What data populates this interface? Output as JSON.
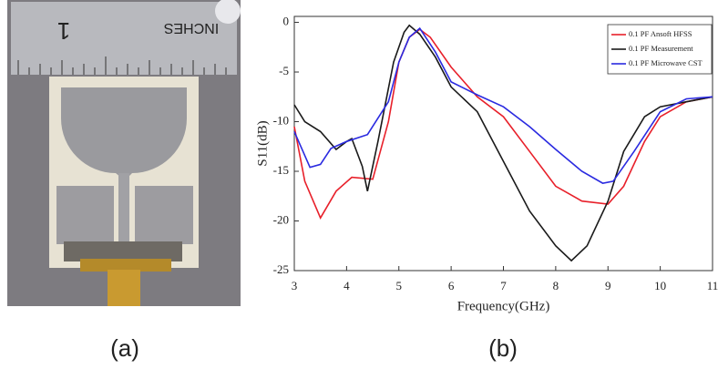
{
  "panel_labels": [
    "(a)",
    "(b)"
  ],
  "photo": {
    "ruler_label": "INCHES",
    "ruler_number": "1"
  },
  "chart_data": {
    "type": "line",
    "xlabel": "Frequency(GHz)",
    "ylabel": "S11(dB)",
    "xlim": [
      3,
      11
    ],
    "ylim": [
      -25,
      0.6
    ],
    "xticks": [
      3,
      4,
      5,
      6,
      7,
      8,
      9,
      10,
      11
    ],
    "yticks": [
      0,
      -5,
      -10,
      -15,
      -20,
      -25
    ],
    "legend": "top-right",
    "series": [
      {
        "name": "0.1 PF Ansoft HFSS",
        "color": "#e8202a",
        "x": [
          3,
          3.2,
          3.5,
          3.8,
          4.1,
          4.5,
          4.8,
          5.0,
          5.2,
          5.4,
          5.6,
          6.0,
          6.5,
          7.0,
          7.5,
          8.0,
          8.5,
          9.0,
          9.3,
          9.7,
          10.0,
          10.5,
          11.0
        ],
        "values": [
          -10.5,
          -16,
          -19.7,
          -17,
          -15.6,
          -15.8,
          -10,
          -4,
          -1.5,
          -0.7,
          -1.5,
          -4.5,
          -7.5,
          -9.5,
          -13,
          -16.5,
          -18,
          -18.3,
          -16.5,
          -12,
          -9.5,
          -8,
          -7.5
        ]
      },
      {
        "name": "0.1 PF Measurement",
        "color": "#1a1a1a",
        "x": [
          3,
          3.2,
          3.5,
          3.8,
          4.0,
          4.1,
          4.3,
          4.4,
          4.6,
          4.9,
          5.1,
          5.2,
          5.4,
          5.7,
          6.0,
          6.5,
          7.0,
          7.5,
          8.0,
          8.3,
          8.6,
          9.0,
          9.3,
          9.7,
          10.0,
          10.5,
          11.0
        ],
        "values": [
          -8.3,
          -10,
          -11,
          -12.8,
          -12,
          -11.7,
          -14.5,
          -17,
          -12,
          -4,
          -1,
          -0.3,
          -1.2,
          -3.5,
          -6.5,
          -9,
          -14,
          -19,
          -22.5,
          -24,
          -22.5,
          -18,
          -13,
          -9.5,
          -8.5,
          -8,
          -7.5
        ]
      },
      {
        "name": "0.1 PF Microwave CST",
        "color": "#2a2ae0",
        "x": [
          3,
          3.3,
          3.5,
          3.7,
          4.0,
          4.4,
          4.8,
          5.0,
          5.2,
          5.4,
          5.7,
          6.0,
          6.5,
          7.0,
          7.5,
          8.0,
          8.5,
          8.9,
          9.1,
          9.5,
          10.0,
          10.5,
          11.0
        ],
        "values": [
          -11,
          -14.6,
          -14.3,
          -12.7,
          -12,
          -11.3,
          -8,
          -4,
          -1.5,
          -0.6,
          -3,
          -6,
          -7.3,
          -8.5,
          -10.5,
          -12.8,
          -15,
          -16.2,
          -16,
          -13,
          -9,
          -7.7,
          -7.5
        ]
      }
    ]
  }
}
